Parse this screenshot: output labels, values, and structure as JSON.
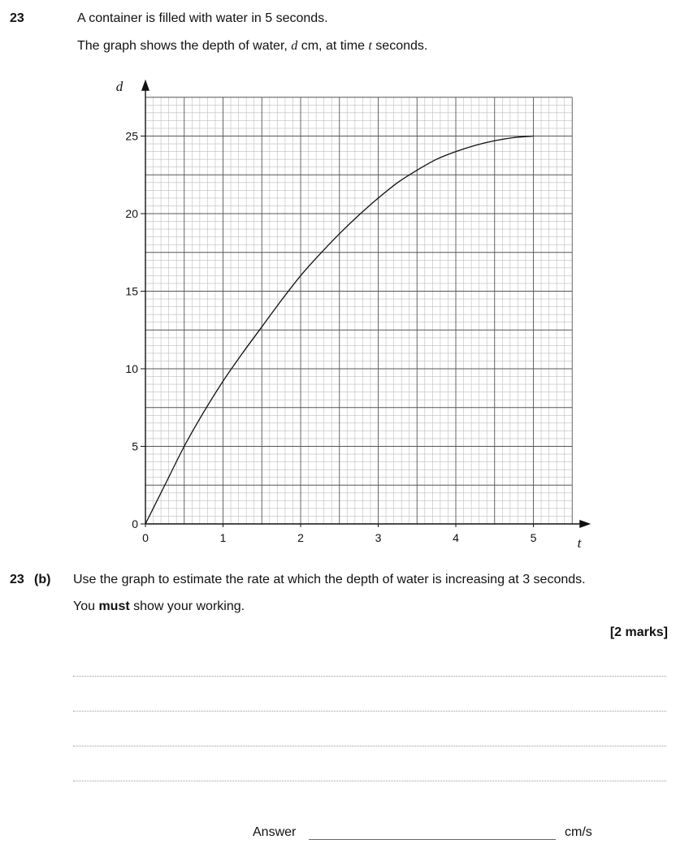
{
  "question": {
    "number": "23",
    "line1": "A container is filled with water in 5 seconds.",
    "line2_pre": "The graph shows the depth of water, ",
    "line2_var_d": "d",
    "line2_mid": " cm, at time ",
    "line2_var_t": "t",
    "line2_post": " seconds."
  },
  "chart_data": {
    "type": "line",
    "xlabel": "t",
    "ylabel": "d",
    "xlim": [
      0,
      5.5
    ],
    "ylim": [
      0,
      27.5
    ],
    "x_ticks": [
      "0",
      "1",
      "2",
      "3",
      "4",
      "5"
    ],
    "y_ticks": [
      "0",
      "5",
      "10",
      "15",
      "20",
      "25"
    ],
    "grid": true,
    "series": [
      {
        "x": [
          0,
          0.25,
          0.5,
          0.75,
          1,
          1.25,
          1.5,
          1.75,
          2,
          2.25,
          2.5,
          2.75,
          3,
          3.25,
          3.5,
          3.75,
          4,
          4.25,
          4.5,
          4.75,
          5
        ],
        "y": [
          0,
          2.5,
          5,
          7.2,
          9.2,
          11,
          12.7,
          14.4,
          16,
          17.4,
          18.7,
          19.9,
          21,
          22,
          22.8,
          23.5,
          24,
          24.4,
          24.7,
          24.9,
          25
        ]
      }
    ]
  },
  "part_b": {
    "number": "23",
    "part": "(b)",
    "line1": "Use the graph to estimate the rate at which the depth of water is increasing at 3 seconds.",
    "line2_pre": "You ",
    "line2_bold": "must",
    "line2_post": " show your working.",
    "marks": "[2 marks]"
  },
  "answer": {
    "label": "Answer",
    "unit": "cm/s"
  }
}
